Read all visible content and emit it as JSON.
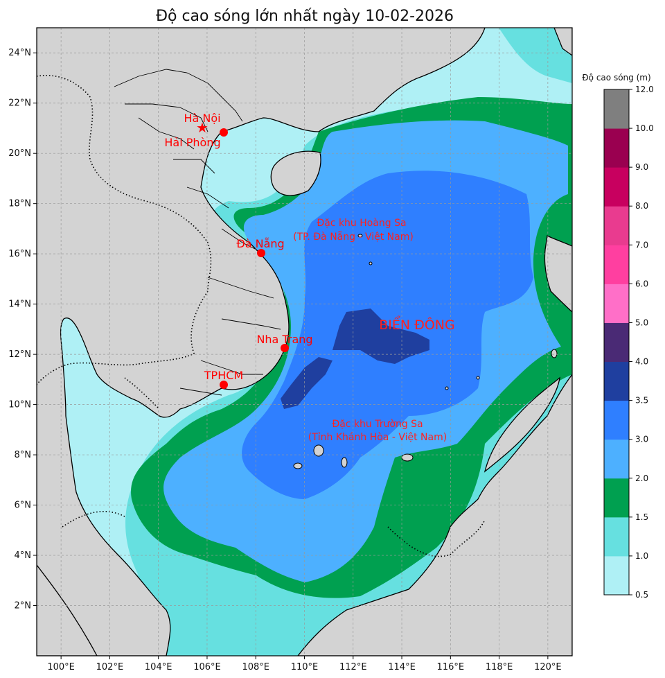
{
  "title": "Độ cao sóng lớn nhất ngày 10-02-2026",
  "map": {
    "lon_range": [
      99,
      121
    ],
    "lat_range": [
      0,
      25
    ],
    "x_ticks": [
      "100°E",
      "102°E",
      "104°E",
      "106°E",
      "108°E",
      "110°E",
      "112°E",
      "114°E",
      "116°E",
      "118°E",
      "120°E"
    ],
    "y_ticks": [
      "2°N",
      "4°N",
      "6°N",
      "8°N",
      "10°N",
      "12°N",
      "14°N",
      "16°N",
      "18°N",
      "20°N",
      "22°N",
      "24°N"
    ],
    "grid": true,
    "land_color": "#d3d3d3"
  },
  "cities": [
    {
      "name": "Hà Nội",
      "lon": 105.85,
      "lat": 21.03,
      "marker": "star"
    },
    {
      "name": "Hải Phòng",
      "lon": 106.68,
      "lat": 20.86,
      "marker": "dot"
    },
    {
      "name": "Đà Nẵng",
      "lon": 108.22,
      "lat": 16.07,
      "marker": "dot"
    },
    {
      "name": "Nha Trang",
      "lon": 109.19,
      "lat": 12.24,
      "marker": "dot"
    },
    {
      "name": "TPHCM",
      "lon": 106.7,
      "lat": 10.78,
      "marker": "dot"
    }
  ],
  "annotations": {
    "bien_dong": "BIỂN ĐÔNG",
    "hoang_sa_1": "Đặc khu Hoàng Sa",
    "hoang_sa_2": "(TP. Đà Nẵng - Việt Nam)",
    "truong_sa_1": "Đặc khu Trường Sa",
    "truong_sa_2": "(Tỉnh Khánh Hòa - Việt Nam)"
  },
  "colorbar": {
    "label": "Độ cao sóng (m)",
    "ticks": [
      "0.5",
      "1.0",
      "1.5",
      "2.0",
      "3.0",
      "3.5",
      "4.0",
      "5.0",
      "6.0",
      "7.0",
      "8.0",
      "9.0",
      "10.0",
      "12.0"
    ],
    "colors": [
      "#aff0f5",
      "#66e0e0",
      "#00a050",
      "#4db0ff",
      "#2f7fff",
      "#1f3f9f",
      "#4a2a75",
      "#ff6fc8",
      "#ff3fa0",
      "#e93b8f",
      "#c8005f",
      "#9a0050",
      "#7f7f7f"
    ]
  }
}
